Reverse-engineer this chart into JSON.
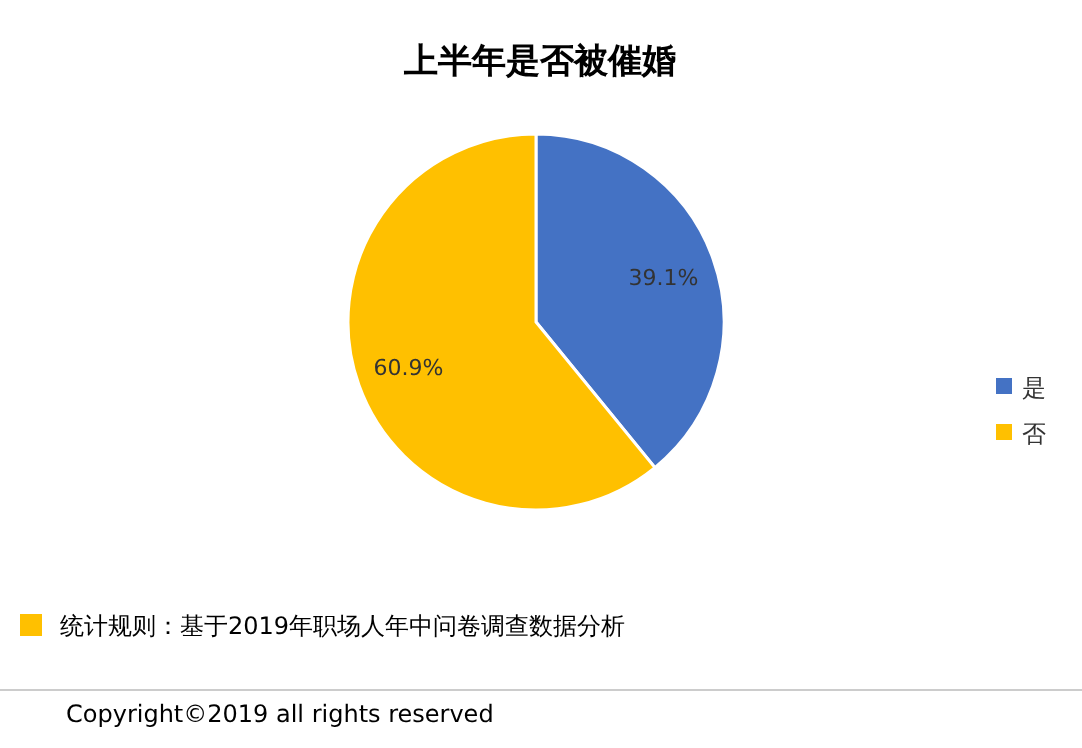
{
  "chart_data": {
    "type": "pie",
    "title": "上半年是否被催婚",
    "categories": [
      "是",
      "否"
    ],
    "values": [
      39.1,
      60.9
    ],
    "colors": [
      "#4472c4",
      "#ffc000"
    ],
    "value_labels": [
      "39.1%",
      "60.9%"
    ],
    "legend": "right",
    "annotations": [
      "统计规则：基于2019年职场人年中问卷调查数据分析",
      "Copyright©2019 all rights reserved"
    ]
  }
}
